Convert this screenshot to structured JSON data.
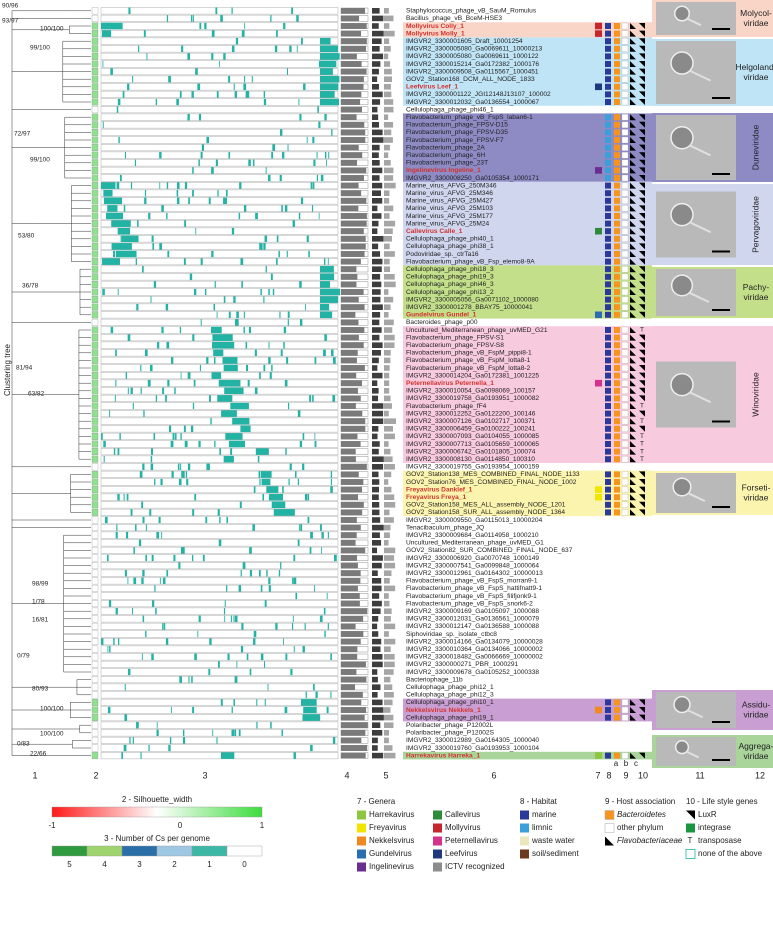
{
  "columns": [
    "1",
    "2",
    "3",
    "4",
    "5",
    "6",
    "7",
    "8",
    "9",
    "10",
    "11",
    "12"
  ],
  "sub_columns": [
    "a",
    "b",
    "c"
  ],
  "tree_label": "Clustering tree",
  "bootstrap": [
    "90/96",
    "93/97",
    "100/100",
    "99/100",
    "72/97",
    "99/100",
    "53/80",
    "36/78",
    "81/94",
    "63/82",
    "98/99",
    "1/78",
    "16/81",
    "0/79",
    "80/93",
    "100/100",
    "100/100",
    "0/83",
    "22/66"
  ],
  "rows": [
    {
      "name": "Staphylococcus_phage_vB_SauM_Romulus"
    },
    {
      "name": "Bacillus_phage_vB_BceM-HSE3"
    },
    {
      "name": "Mollyvirus Colly_1",
      "color": "#d2322d"
    },
    {
      "name": "Mollyvirus Molly_1",
      "color": "#d2322d"
    },
    {
      "name": "IMGVR2_3300001605_Draft_10001254"
    },
    {
      "name": "IMGVR2_3300005080_Ga0069611_10000213"
    },
    {
      "name": "IMGVR2_3300005080_Ga0069611_1000122"
    },
    {
      "name": "IMGVR2_3300015214_Ga0172382_1000176"
    },
    {
      "name": "IMGVR2_3300009508_Ga0115567_1000451"
    },
    {
      "name": "GOV2_Station168_DCM_ALL_NODE_1833"
    },
    {
      "name": "Leefvirus Leef_1",
      "color": "#d2322d"
    },
    {
      "name": "IMGVR2_3300001122_JGI12148J13107_100002"
    },
    {
      "name": "IMGVR2_3300012032_Ga0136554_1000067"
    },
    {
      "name": "Cellulophaga_phage_phi46_1"
    },
    {
      "name": "Flavobacterium_phage_vB_FspS_laban6-1"
    },
    {
      "name": "Flavobacterium_phage_FPSV-D15"
    },
    {
      "name": "Flavobacterium_phage_FPSV-D35"
    },
    {
      "name": "Flavobacterium_phage_FPSV-F7"
    },
    {
      "name": "Flavobacterium_phage_2A"
    },
    {
      "name": "Flavobacterium_phage_6H"
    },
    {
      "name": "Flavobacterium_phage_23T"
    },
    {
      "name": "Ingelinevirus Ingeline_1",
      "color": "#d2322d"
    },
    {
      "name": "IMGVR2_3300008250_Ga0105354_1000171"
    },
    {
      "name": "Marine_virus_AFVG_250M346"
    },
    {
      "name": "Marine_virus_AFVG_25M346"
    },
    {
      "name": "Marine_virus_AFVG_25M427"
    },
    {
      "name": "Marine_virus_AFVG_25M103"
    },
    {
      "name": "Marine_virus_AFVG_25M177"
    },
    {
      "name": "Marine_virus_AFVG_25M24"
    },
    {
      "name": "Callevirus Calle_1",
      "color": "#d2322d"
    },
    {
      "name": "Cellulophaga_phage_phi40_1"
    },
    {
      "name": "Cellulophaga_phage_phi38_1"
    },
    {
      "name": "Podoviridae_sp._ctrTa16"
    },
    {
      "name": "Flavobacterium_phage_vB_Fsp_elemo8-9A"
    },
    {
      "name": "Cellulophaga_phage_phi18_3"
    },
    {
      "name": "Cellulophaga_phage_phi19_3"
    },
    {
      "name": "Cellulophaga_phage_phi46_3"
    },
    {
      "name": "Cellulophaga_phage_phi13_2"
    },
    {
      "name": "IMGVR2_3300005056_Ga0071102_1000080"
    },
    {
      "name": "IMGVR2_3300001278_BBAY75_10000041"
    },
    {
      "name": "Gundelvirus Gundel_1",
      "color": "#d2322d"
    },
    {
      "name": "Bacteroides_phage_p00"
    },
    {
      "name": "Uncultured_Mediterranean_phage_uvMED_G21",
      "lifestyle": "T"
    },
    {
      "name": "Flavobacterium_phage_FPSV-S1"
    },
    {
      "name": "Flavobacterium_phage_FPSV-S8"
    },
    {
      "name": "Flavobacterium_phage_vB_FspM_pippi8-1"
    },
    {
      "name": "Flavobacterium_phage_vB_FspM_lotta8-1"
    },
    {
      "name": "Flavobacterium_phage_vB_FspM_lotta8-2"
    },
    {
      "name": "IMGVR2_3300014204_Ga0172381_1001225"
    },
    {
      "name": "Peternellavirus Peternella_1",
      "color": "#d2322d"
    },
    {
      "name": "IMGVR2_3300010054_Ga0098069_100157"
    },
    {
      "name": "IMGVR2_3300019758_Ga0193951_1000082"
    },
    {
      "name": "Flavobacterium_phage_fF4",
      "lifestyle": "T"
    },
    {
      "name": "IMGVR2_3300012252_Ga0122200_100146"
    },
    {
      "name": "IMGVR2_3300007126_Ga0102717_100371",
      "lifestyle": "T"
    },
    {
      "name": "IMGVR2_3300006459_Ga0100222_100241"
    },
    {
      "name": "IMGVR2_3300007093_Ga0104055_1000085",
      "lifestyle": "T"
    },
    {
      "name": "IMGVR2_3300007713_Ga0105659_1000065",
      "lifestyle": "T"
    },
    {
      "name": "IMGVR2_3300006742_Ga0101805_100074",
      "lifestyle": "T"
    },
    {
      "name": "IMGVR2_3300008130_Ga0114850_100310",
      "lifestyle": "T"
    },
    {
      "name": "IMGVR2_3300019755_Ga0193954_1000159"
    },
    {
      "name": "GOV2_Station138_MES_COMBINED_FINAL_NODE_1133"
    },
    {
      "name": "GOV2_Station76_MES_COMBINED_FINAL_NODE_1002"
    },
    {
      "name": "Freyavirus Danklef_1",
      "color": "#d2322d"
    },
    {
      "name": "Freyavirus Freya_1",
      "color": "#d2322d"
    },
    {
      "name": "GOV2_Station158_MES_ALL_assembly_NODE_1201"
    },
    {
      "name": "GOV2_Station158_SUR_ALL_assembly_NODE_1364"
    },
    {
      "name": "IMGVR2_3300009550_Ga0115013_10000204"
    },
    {
      "name": "Tenacibaculum_phage_JQ"
    },
    {
      "name": "IMGVR2_3300009684_Ga0114958_1000210"
    },
    {
      "name": "Uncultured_Mediterranean_phage_uvMED_G1"
    },
    {
      "name": "GOV2_Station82_SUR_COMBINED_FINAL_NODE_637"
    },
    {
      "name": "IMGVR2_3300006920_Ga0070748_1000149"
    },
    {
      "name": "IMGVR2_3300007541_Ga0099848_1000064"
    },
    {
      "name": "IMGVR2_3300012961_Ga0164302_10000013"
    },
    {
      "name": "Flavobacterium_phage_vB_FspS_morran9-1"
    },
    {
      "name": "Flavobacterium_phage_vB_FspS_hattifnatt9-1"
    },
    {
      "name": "Flavobacterium_phage_vB_FspS_filifjonk9-1"
    },
    {
      "name": "Flavobacterium_phage_vB_FspS_snork6-2"
    },
    {
      "name": "IMGVR2_3300009169_Ga0105097_1000088"
    },
    {
      "name": "IMGVR2_3300012031_Ga0136561_1000079"
    },
    {
      "name": "IMGVR2_3300012147_Ga0136588_1000088"
    },
    {
      "name": "Siphoviridae_sp._isolate_ctbc8"
    },
    {
      "name": "IMGVR2_3300014166_Ga0134079_10000028"
    },
    {
      "name": "IMGVR2_3300010364_Ga0134066_10000002"
    },
    {
      "name": "IMGVR2_3300018482_Ga0066669_10000002"
    },
    {
      "name": "IMGVR2_3300000271_PBR_1000291"
    },
    {
      "name": "IMGVR2_3300009678_Ga0105252_1000338"
    },
    {
      "name": "Bacteriophage_11b"
    },
    {
      "name": "Cellulophaga_phage_phi12_1"
    },
    {
      "name": "Cellulophaga_phage_phi12_3"
    },
    {
      "name": "Cellulophaga_phage_phi10_1"
    },
    {
      "name": "Nekkelsvirus Nekkels_1",
      "color": "#d2322d"
    },
    {
      "name": "Cellulophaga_phage_phi19_1"
    },
    {
      "name": "Polaribacter_phage_P12002L"
    },
    {
      "name": "Polaribacter_phage_P12002S"
    },
    {
      "name": "IMGVR2_3300012989_Ga0164305_1000040"
    },
    {
      "name": "IMGVR2_3300019760_Ga0193953_1000104"
    },
    {
      "name": "Harrekavirus Harreka_1",
      "color": "#d2322d"
    }
  ],
  "families": [
    {
      "label": [
        "Molycol-",
        "viridae"
      ],
      "rows": [
        2,
        3
      ],
      "color": "#f9d5c8"
    },
    {
      "label": [
        "Helgoland-",
        "viridae"
      ],
      "rows": [
        4,
        12
      ],
      "color": "#bfe4f6"
    },
    {
      "label": [
        "Duneviridae"
      ],
      "rows": [
        14,
        22
      ],
      "color": "#8d8ac4"
    },
    {
      "label": [
        "Pervagoviridae"
      ],
      "rows": [
        23,
        33
      ],
      "color": "#cfd6ee"
    },
    {
      "label": [
        "Pachy-",
        "viridae"
      ],
      "rows": [
        34,
        40
      ],
      "color": "#c3df8a"
    },
    {
      "label": [
        "Winoviridae"
      ],
      "rows": [
        42,
        59
      ],
      "color": "#f7cadd"
    },
    {
      "label": [
        "Forseti-",
        "viridae"
      ],
      "rows": [
        61,
        66
      ],
      "color": "#fbf4ae"
    },
    {
      "label": [
        "Assidu-",
        "viridae"
      ],
      "rows": [
        91,
        93
      ],
      "color": "#c99ed2"
    },
    {
      "label": [
        "Aggrega-",
        "viridae"
      ],
      "rows": [
        98,
        98
      ],
      "color": "#a9d59b"
    }
  ],
  "legends": {
    "silhouette": {
      "title": "2 - Silhouette_width",
      "labels": [
        "-1",
        "0",
        "1"
      ],
      "colors": [
        "#ff1a1a",
        "#ffffff",
        "#3ddc3d"
      ]
    },
    "cs": {
      "title": "3 - Number of Cs per genome",
      "labels": [
        "5",
        "4",
        "3",
        "2",
        "1",
        "0"
      ],
      "colors": [
        "#2f9a3e",
        "#9fd36d",
        "#2a6fa8",
        "#9ec7e3",
        "#3db8a6",
        "#ffffff"
      ]
    },
    "genera": {
      "title": "7 - Genera",
      "items": [
        {
          "label": "Harrekavirus",
          "color": "#8dc63f"
        },
        {
          "label": "Freyavirus",
          "color": "#f2e500"
        },
        {
          "label": "Nekkelsvirus",
          "color": "#f0891f"
        },
        {
          "label": "Gundelvirus",
          "color": "#2b6db3"
        },
        {
          "label": "Ingelinevirus",
          "color": "#6a2d91"
        },
        {
          "label": "Callevirus",
          "color": "#2e8b3a"
        },
        {
          "label": "Mollyvirus",
          "color": "#c6262e"
        },
        {
          "label": "Peternellavirus",
          "color": "#d6318b"
        },
        {
          "label": "Leefvirus",
          "color": "#1f3a7c"
        },
        {
          "label": "ICTV recognized",
          "color": "#8c8c8c"
        }
      ]
    },
    "habitat": {
      "title": "8 - Habitat",
      "items": [
        {
          "label": "marine",
          "color": "#2b3a9a"
        },
        {
          "label": "limnic",
          "color": "#3aa0dc"
        },
        {
          "label": "waste water",
          "color": "#ebe6bb"
        },
        {
          "label": "soil/sediment",
          "color": "#6b3a1e"
        }
      ]
    },
    "host": {
      "title": "9 - Host association",
      "items": [
        {
          "label": "Bacteroidetes",
          "color": "#f7941d",
          "italic": true
        },
        {
          "label": "other phylum",
          "color": "#ffffff"
        },
        {
          "label": "Flavobacteriaceae",
          "color": "#000000",
          "italic": true
        }
      ]
    },
    "lifestyle": {
      "title": "10 - Life style genes",
      "items": [
        {
          "label": "LuxR",
          "color": "#000000"
        },
        {
          "label": "integrase",
          "color": "#1a9641"
        },
        {
          "label": "transposase",
          "symbol": "T"
        },
        {
          "label": "none of the above",
          "color": "#ffffff"
        }
      ]
    }
  }
}
